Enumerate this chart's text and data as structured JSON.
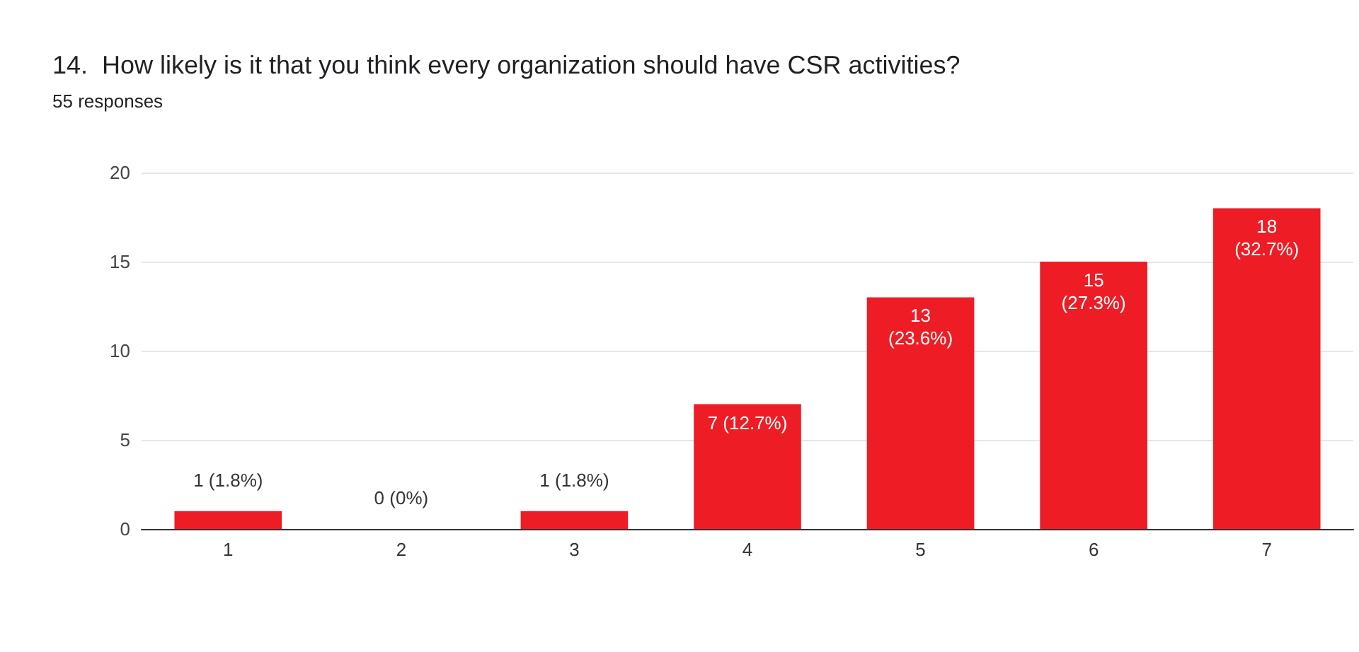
{
  "chart_data": {
    "type": "bar",
    "title": "14.  How likely is it that you think every organization should have CSR activities?",
    "subtitle": "55 responses",
    "categories": [
      "1",
      "2",
      "3",
      "4",
      "5",
      "6",
      "7"
    ],
    "values": [
      1,
      0,
      1,
      7,
      13,
      15,
      18
    ],
    "color": "#ee1d25",
    "value_labels": [
      "1 (1.8%)",
      "0 (0%)",
      "1 (1.8%)",
      "7 (12.7%)",
      "13\n(23.6%)",
      "15\n(27.3%)",
      "18\n(32.7%)"
    ],
    "ylim": [
      0,
      20
    ],
    "yticks": [
      0,
      5,
      10,
      15,
      20
    ],
    "grid": "y"
  }
}
